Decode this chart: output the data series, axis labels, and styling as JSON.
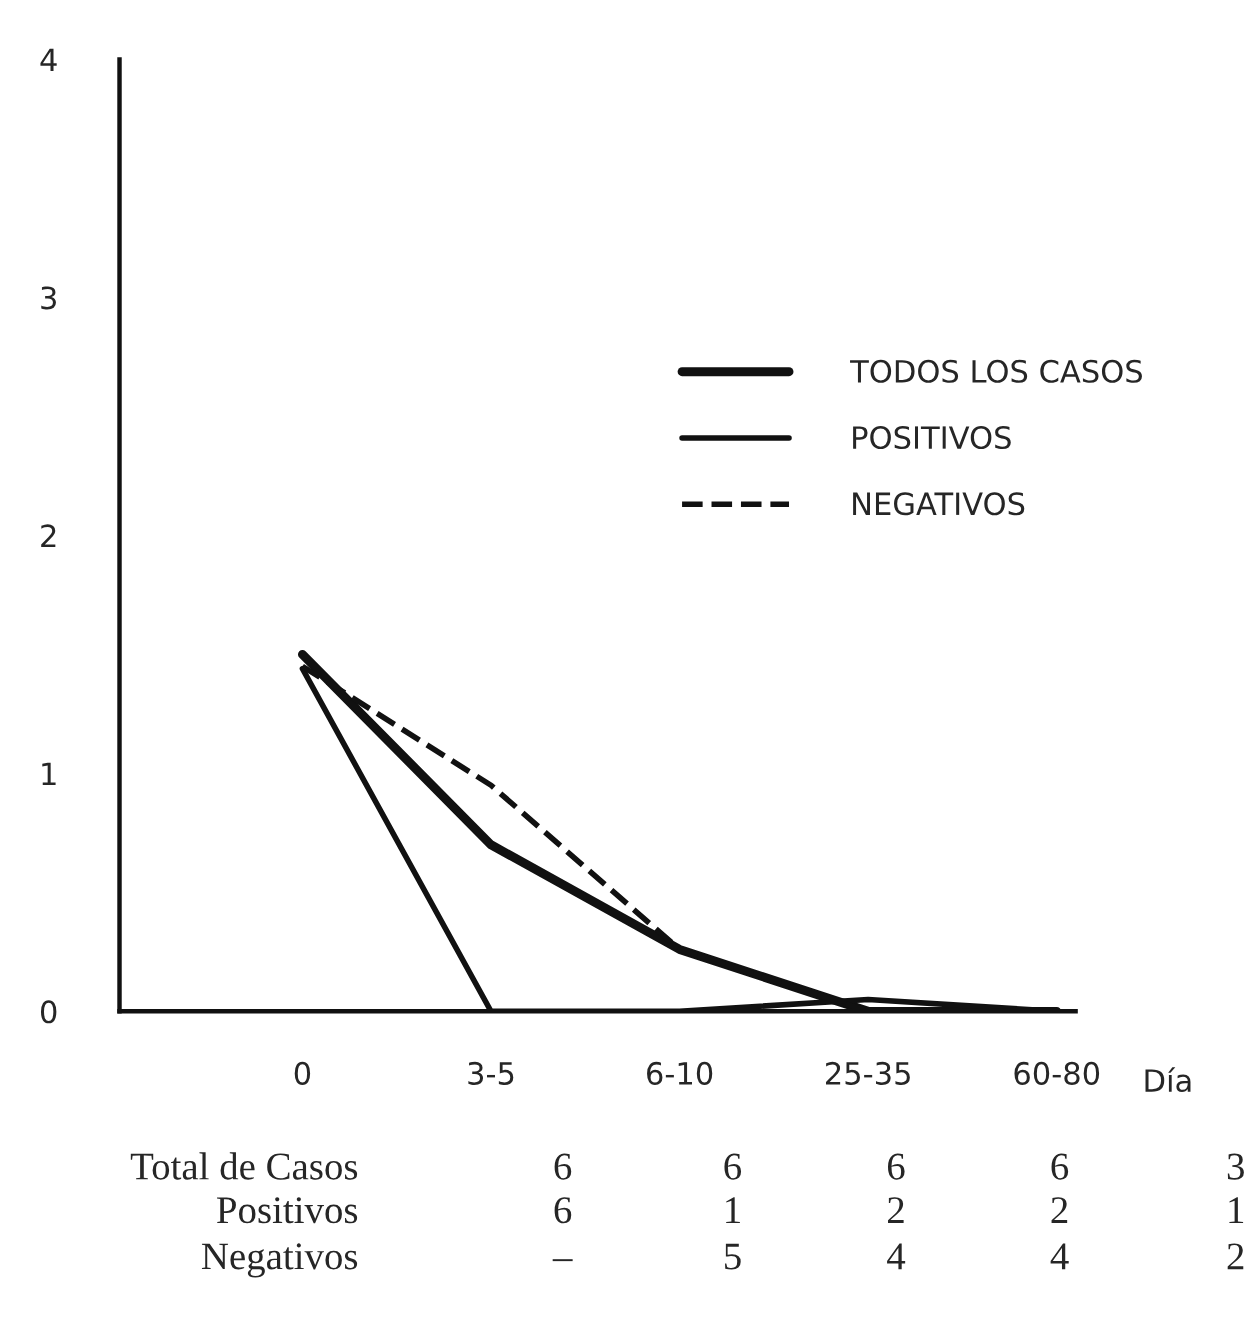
{
  "chart_data": {
    "type": "line",
    "categories": [
      "0",
      "3-5",
      "6-10",
      "25-35",
      "60-80"
    ],
    "xlabel": "Día",
    "ylim": [
      0,
      4
    ],
    "yticks": [
      0,
      1,
      2,
      3,
      4
    ],
    "series": [
      {
        "name": "TODOS LOS CASOS",
        "color": "#111111",
        "line_style": "solid",
        "values": [
          1.5,
          0.7,
          0.26,
          0,
          0
        ]
      },
      {
        "name": "POSITIVOS",
        "color": "#111111",
        "line_style": "solid",
        "values": [
          1.44,
          0,
          0,
          0.05,
          0
        ]
      },
      {
        "name": "NEGATIVOS",
        "color": "#111111",
        "line_style": "dashed",
        "values": [
          1.45,
          0.95,
          0.26,
          0,
          0
        ]
      }
    ],
    "legend": "right",
    "grid": false,
    "marker": "none",
    "annotations": [
      "Total de Casos",
      "6",
      "6",
      "6",
      "6",
      "3",
      "Positivos",
      "6",
      "1",
      "2",
      "2",
      "1",
      "Negativos",
      "–",
      "5",
      "4",
      "4",
      "2"
    ]
  }
}
